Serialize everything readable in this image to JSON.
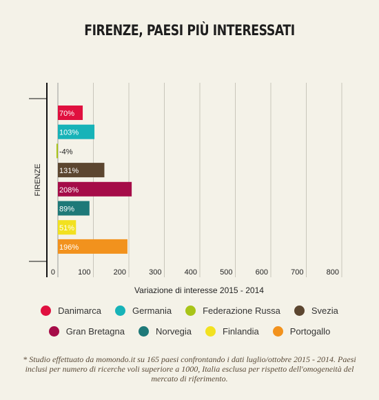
{
  "chart_data": {
    "type": "bar",
    "orientation": "horizontal",
    "title": "FIRENZE, PAESI PIÙ INTERESSATI",
    "category_label": "FIRENZE",
    "xlabel": "Variazione di interesse 2015 - 2014",
    "xlim": [
      0,
      800
    ],
    "xticks": [
      0,
      100,
      200,
      300,
      400,
      500,
      600,
      700,
      800
    ],
    "grid": true,
    "legend_position": "bottom",
    "series": [
      {
        "name": "Danimarca",
        "value": 70,
        "label": "70%",
        "color": "#e0103f"
      },
      {
        "name": "Germania",
        "value": 103,
        "label": "103%",
        "color": "#17b3b8"
      },
      {
        "name": "Federazione Russa",
        "value": -4,
        "label": "-4%",
        "color": "#a8c418"
      },
      {
        "name": "Svezia",
        "value": 131,
        "label": "131%",
        "color": "#5c4630"
      },
      {
        "name": "Gran Bretagna",
        "value": 208,
        "label": "208%",
        "color": "#a50c48"
      },
      {
        "name": "Norvegia",
        "value": 89,
        "label": "89%",
        "color": "#1e7978"
      },
      {
        "name": "Finlandia",
        "value": 51,
        "label": "51%",
        "color": "#f2e120"
      },
      {
        "name": "Portogallo",
        "value": 196,
        "label": "196%",
        "color": "#f2921d"
      }
    ]
  },
  "footnote": "* Studio effettuato da momondo.it su 165 paesi confrontando i dati luglio/ottobre 2015 - 2014. Paesi inclusi per numero di ricerche voli superiore a 1000, Italia esclusa per rispetto dell'omogeneità del mercato di riferimento."
}
